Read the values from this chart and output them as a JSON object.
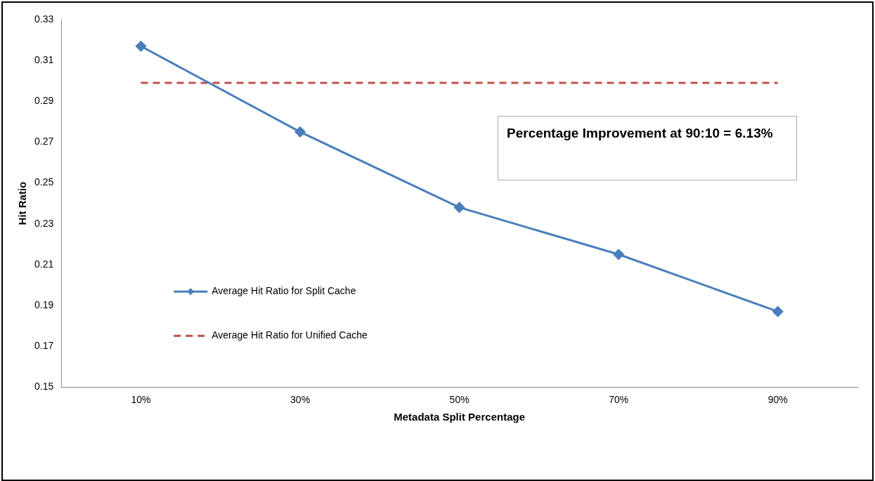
{
  "chart_data": {
    "type": "line",
    "xlabel": "Metadata Split Percentage",
    "ylabel": "Hit Ratio",
    "categories": [
      "10%",
      "30%",
      "50%",
      "70%",
      "90%"
    ],
    "series": [
      {
        "name": "Average Hit Ratio for Split Cache",
        "color": "#4a7ebb",
        "values": [
          0.317,
          0.275,
          0.238,
          0.215,
          0.187
        ],
        "marker": "diamond",
        "line_style": "solid"
      },
      {
        "name": "Average Hit Ratio for Unified Cache",
        "color": "#c0504d",
        "values": [
          0.299,
          0.299,
          0.299,
          0.299,
          0.299
        ],
        "marker": "none",
        "line_style": "dashed"
      }
    ],
    "ylim": [
      0.15,
      0.33
    ],
    "yticks": [
      0.15,
      0.17,
      0.19,
      0.21,
      0.23,
      0.25,
      0.27,
      0.29,
      0.31,
      0.33
    ],
    "grid": false,
    "legend": "left",
    "annotations": [
      "Percentage Improvement at 90:10 = 6.13%"
    ]
  }
}
